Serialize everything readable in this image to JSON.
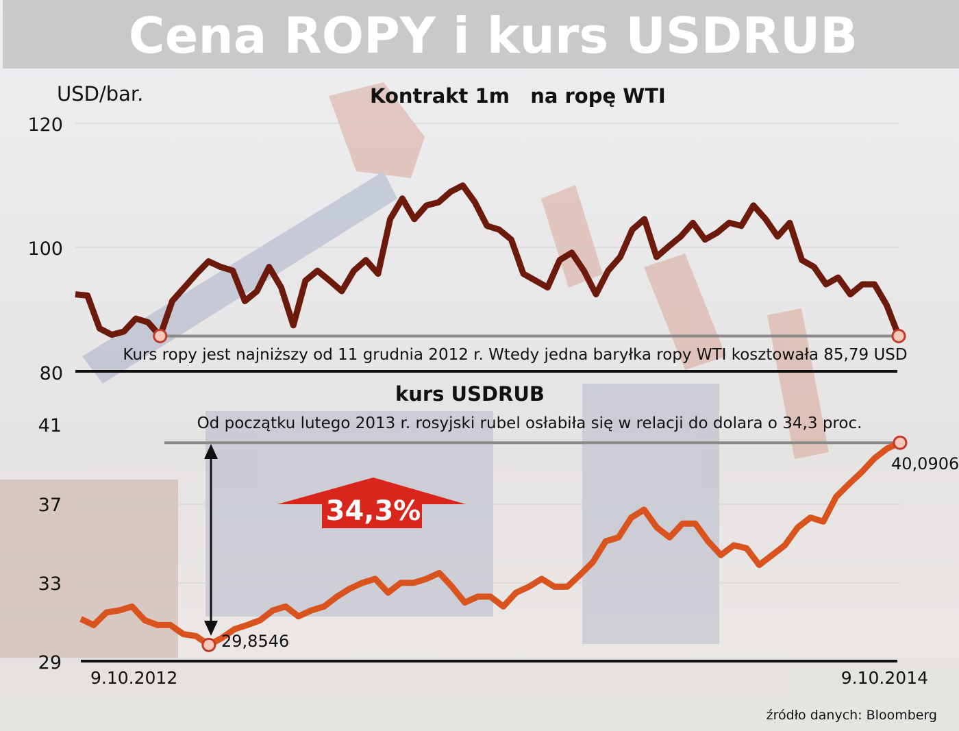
{
  "title": "Cena ROPY i kurs USDRUB",
  "source": "źródło danych: Bloomberg",
  "colors": {
    "title_bar": "#c9c9c9",
    "oil_line": "#6b1a0c",
    "rub_line": "#d9531e",
    "accent_red": "#d9261c",
    "marker_fill": "#f6c9b8"
  },
  "chart_data": [
    {
      "type": "line",
      "title": "Kontrakt 1m   na ropę WTI",
      "ylabel": "USD/bar.",
      "ylim": [
        80,
        120
      ],
      "yticks": [
        "120",
        "100",
        "80"
      ],
      "xlim": [
        "9.10.2012",
        "9.10.2014"
      ],
      "grid": true,
      "annotation": "Kurs ropy jest najniższy od 11 grudnia 2012 r. Wtedy jedna baryłka ropy WTI kosztowała 85,79 USD",
      "reference_level": 85.79,
      "series": [
        {
          "values": [
            92.5,
            92.3,
            87,
            86,
            86.5,
            88.6,
            88,
            85.79,
            91.4,
            93.6,
            95.8,
            97.8,
            96.9,
            96.3,
            91.4,
            93,
            96.9,
            93.6,
            87.5,
            94.7,
            96.3,
            94.7,
            93,
            96.3,
            98,
            95.8,
            104.6,
            107.9,
            104.6,
            106.8,
            107.3,
            109,
            110,
            107.3,
            103.5,
            102.9,
            101.3,
            95.8,
            94.7,
            93.6,
            98,
            99.2,
            96.3,
            92.5,
            96.3,
            98.5,
            102.9,
            104.6,
            98.5,
            100.2,
            101.8,
            104,
            101.3,
            102.4,
            104,
            103.5,
            106.8,
            104.6,
            101.8,
            104,
            98,
            96.9,
            94.1,
            95.2,
            92.5,
            94.1,
            94.1,
            90.8,
            85.79
          ]
        }
      ]
    },
    {
      "type": "line",
      "title": "kurs USDRUB",
      "ylim": [
        29,
        41
      ],
      "yticks": [
        "41",
        "37",
        "33",
        "29"
      ],
      "xlim": [
        "9.10.2012",
        "9.10.2014"
      ],
      "xticks": [
        "9.10.2012",
        "9.10.2014"
      ],
      "grid": true,
      "annotation": "Od początku lutego 2013 r. rosyjski rubel osłabiła się w relacji do dolara o 34,3 proc.",
      "change_label": "34,3%",
      "min_label": "29,8546",
      "last_label": "40,0906",
      "min_value": 29.8546,
      "last_value": 40.0906,
      "series": [
        {
          "values": [
            31.17,
            30.86,
            31.5,
            31.6,
            31.8,
            31.1,
            30.86,
            30.86,
            30.4,
            30.3,
            29.8546,
            30.2,
            30.65,
            30.86,
            31.1,
            31.6,
            31.8,
            31.3,
            31.6,
            31.8,
            32.3,
            32.7,
            33,
            33.2,
            32.5,
            33,
            33,
            33.2,
            33.5,
            32.8,
            32,
            32.3,
            32.3,
            31.8,
            32.5,
            32.8,
            33.2,
            32.8,
            32.8,
            33.4,
            34.05,
            35.1,
            35.3,
            36.3,
            36.7,
            35.8,
            35.3,
            36,
            36,
            35.1,
            34.4,
            34.9,
            34.75,
            33.9,
            34.4,
            34.9,
            35.8,
            36.3,
            36.1,
            37.35,
            38,
            38.6,
            39.3,
            39.8,
            40.0906
          ]
        }
      ]
    }
  ]
}
